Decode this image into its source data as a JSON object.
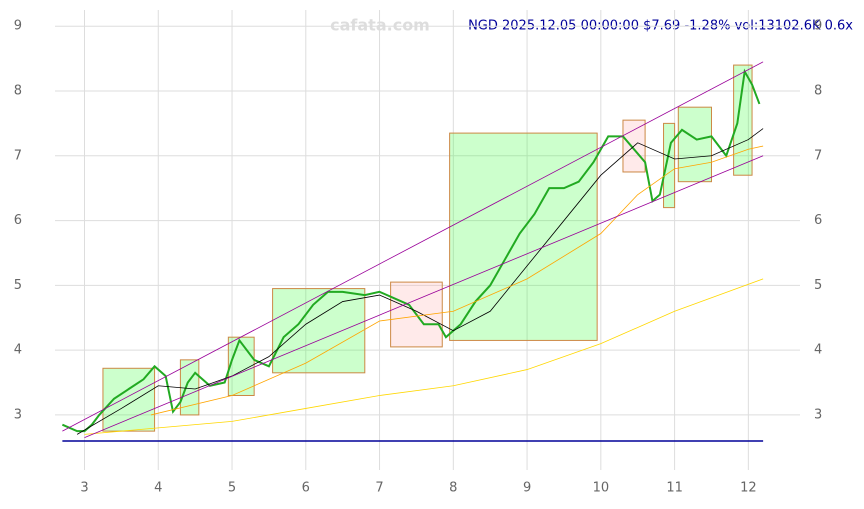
{
  "chart_data": {
    "type": "line",
    "watermark": "cafata.com",
    "title": "NGD 2025.12.05 00:00:00 $7.69 -1.28% vol:13102.6K 0.6x",
    "xlim": [
      2.6,
      12.7
    ],
    "ylim": [
      2.15,
      9.25
    ],
    "xticks": [
      3,
      4,
      5,
      6,
      7,
      8,
      9,
      10,
      11,
      12
    ],
    "yticks": [
      3,
      4,
      5,
      6,
      7,
      8,
      9
    ],
    "grid": true,
    "boxes": [
      {
        "color": "#33ff33",
        "x0": 3.25,
        "x1": 3.95,
        "y0": 2.75,
        "y1": 3.72
      },
      {
        "color": "#33ff33",
        "x0": 4.3,
        "x1": 4.55,
        "y0": 3.0,
        "y1": 3.85
      },
      {
        "color": "#33ff33",
        "x0": 4.95,
        "x1": 5.3,
        "y0": 3.3,
        "y1": 4.2
      },
      {
        "color": "#33ff33",
        "x0": 5.55,
        "x1": 6.8,
        "y0": 3.65,
        "y1": 4.95
      },
      {
        "color": "#ffaaaa",
        "x0": 7.15,
        "x1": 7.85,
        "y0": 4.05,
        "y1": 5.05
      },
      {
        "color": "#33ff33",
        "x0": 7.95,
        "x1": 9.95,
        "y0": 4.15,
        "y1": 7.35
      },
      {
        "color": "#ffaaaa",
        "x0": 10.3,
        "x1": 10.6,
        "y0": 6.75,
        "y1": 7.55
      },
      {
        "color": "#33ff33",
        "x0": 10.85,
        "x1": 11.0,
        "y0": 6.2,
        "y1": 7.5
      },
      {
        "color": "#33ff33",
        "x0": 11.05,
        "x1": 11.5,
        "y0": 6.6,
        "y1": 7.75
      },
      {
        "color": "#33ff33",
        "x0": 11.8,
        "x1": 12.05,
        "y0": 6.7,
        "y1": 8.4
      }
    ],
    "series": [
      {
        "name": "price",
        "color": "#22aa22",
        "width": 2,
        "x": [
          2.7,
          2.9,
          3.0,
          3.1,
          3.2,
          3.4,
          3.6,
          3.8,
          3.95,
          4.1,
          4.2,
          4.3,
          4.4,
          4.5,
          4.7,
          4.9,
          5.0,
          5.1,
          5.3,
          5.5,
          5.7,
          5.9,
          6.1,
          6.3,
          6.5,
          6.8,
          7.0,
          7.2,
          7.4,
          7.6,
          7.8,
          7.9,
          8.1,
          8.3,
          8.5,
          8.7,
          8.9,
          9.1,
          9.3,
          9.5,
          9.7,
          9.9,
          10.1,
          10.3,
          10.45,
          10.6,
          10.7,
          10.8,
          10.95,
          11.1,
          11.3,
          11.5,
          11.7,
          11.85,
          11.95,
          12.05,
          12.15
        ],
        "values": [
          2.85,
          2.75,
          2.75,
          2.85,
          3.0,
          3.25,
          3.4,
          3.55,
          3.75,
          3.6,
          3.05,
          3.2,
          3.5,
          3.65,
          3.45,
          3.5,
          3.85,
          4.15,
          3.85,
          3.75,
          4.2,
          4.4,
          4.7,
          4.9,
          4.9,
          4.85,
          4.9,
          4.8,
          4.7,
          4.4,
          4.4,
          4.2,
          4.4,
          4.75,
          5.0,
          5.4,
          5.8,
          6.1,
          6.5,
          6.5,
          6.6,
          6.9,
          7.3,
          7.3,
          7.1,
          6.9,
          6.3,
          6.4,
          7.2,
          7.4,
          7.25,
          7.3,
          7.0,
          7.5,
          8.3,
          8.1,
          7.8
        ]
      },
      {
        "name": "ma20",
        "color": "#000000",
        "width": 0.8,
        "x": [
          2.9,
          3.5,
          4.0,
          4.5,
          5.0,
          5.5,
          6.0,
          6.5,
          7.0,
          7.5,
          8.0,
          8.5,
          9.0,
          9.5,
          10.0,
          10.5,
          11.0,
          11.5,
          12.0,
          12.2
        ],
        "values": [
          2.7,
          3.1,
          3.45,
          3.4,
          3.6,
          3.9,
          4.4,
          4.75,
          4.85,
          4.6,
          4.3,
          4.6,
          5.3,
          6.0,
          6.7,
          7.2,
          6.95,
          7.0,
          7.25,
          7.42
        ]
      },
      {
        "name": "ma50",
        "color": "#ffa500",
        "width": 0.8,
        "x": [
          3.9,
          5.0,
          6.0,
          7.0,
          8.0,
          9.0,
          10.0,
          10.5,
          11.0,
          11.5,
          12.0,
          12.2
        ],
        "values": [
          3.0,
          3.3,
          3.8,
          4.45,
          4.6,
          5.1,
          5.8,
          6.4,
          6.8,
          6.9,
          7.1,
          7.15
        ]
      },
      {
        "name": "ma200",
        "color": "#ffd700",
        "width": 0.8,
        "x": [
          3.0,
          4.0,
          5.0,
          6.0,
          7.0,
          8.0,
          9.0,
          10.0,
          11.0,
          12.2
        ],
        "values": [
          2.7,
          2.8,
          2.9,
          3.1,
          3.3,
          3.45,
          3.7,
          4.1,
          4.6,
          5.1
        ]
      },
      {
        "name": "channel-high",
        "color": "#990099",
        "width": 0.8,
        "x": [
          2.7,
          12.2
        ],
        "values": [
          2.75,
          8.45
        ]
      },
      {
        "name": "channel-low",
        "color": "#990099",
        "width": 0.8,
        "x": [
          3.0,
          12.2
        ],
        "values": [
          2.65,
          7.0
        ]
      }
    ]
  }
}
